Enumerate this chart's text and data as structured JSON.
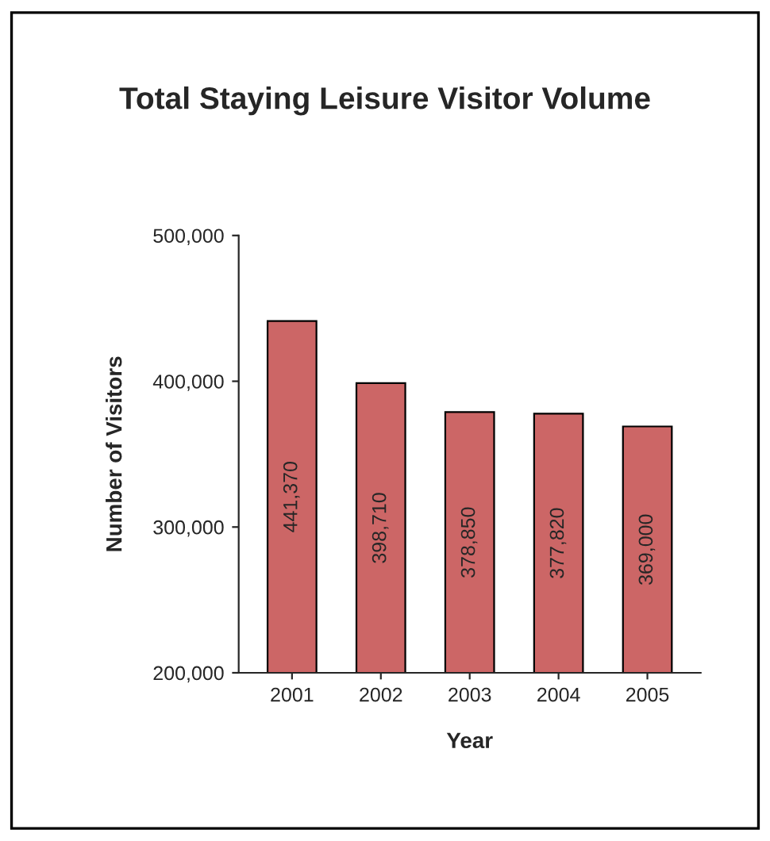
{
  "chart_data": {
    "type": "bar",
    "title": "Total Staying Leisure Visitor Volume",
    "xlabel": "Year",
    "ylabel": "Number of Visitors",
    "categories": [
      "2001",
      "2002",
      "2003",
      "2004",
      "2005"
    ],
    "values": [
      441370,
      398710,
      378850,
      377820,
      369000
    ],
    "value_labels": [
      "441,370",
      "398,710",
      "378,850",
      "377,820",
      "369,000"
    ],
    "color": "#cc6666",
    "ylim": [
      200000,
      500000
    ],
    "yticks": [
      {
        "value": 200000,
        "label": "200,000"
      },
      {
        "value": 300000,
        "label": "300,000"
      },
      {
        "value": 400000,
        "label": "400,000"
      },
      {
        "value": 500000,
        "label": "500,000"
      }
    ],
    "grid": false,
    "legend": false
  }
}
